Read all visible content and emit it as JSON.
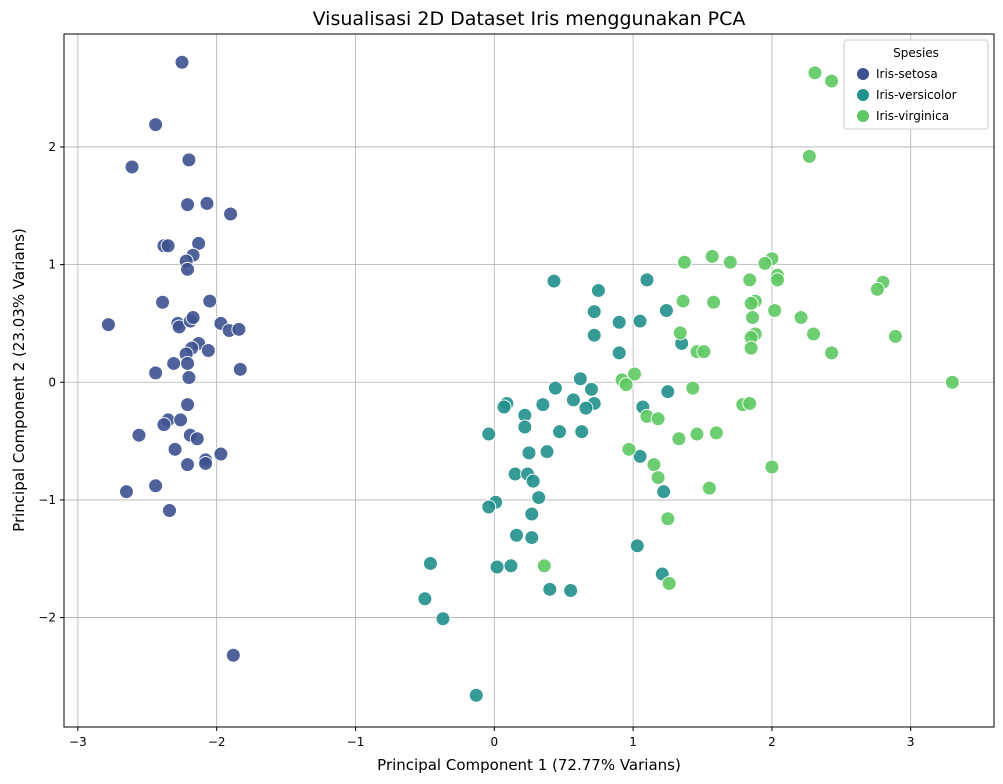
{
  "chart_data": {
    "type": "scatter",
    "title": "Visualisasi 2D Dataset Iris menggunakan PCA",
    "xlabel": "Principal Component 1 (72.77% Varians)",
    "ylabel": "Principal Component 2 (23.03% Varians)",
    "xlim": [
      -3.1,
      3.6
    ],
    "ylim": [
      -2.93,
      2.96
    ],
    "xticks": [
      -3,
      -2,
      -1,
      0,
      1,
      2,
      3
    ],
    "yticks": [
      -2,
      -1,
      0,
      1,
      2
    ],
    "xtick_labels": [
      "−3",
      "−2",
      "−1",
      "0",
      "1",
      "2",
      "3"
    ],
    "ytick_labels": [
      "−2",
      "−1",
      "0",
      "1",
      "2"
    ],
    "grid": true,
    "legend": {
      "title": "Spesies",
      "position": "top-right"
    },
    "series": [
      {
        "name": "Iris-setosa",
        "color": "#3e5290",
        "points": [
          [
            -2.25,
            2.72
          ],
          [
            -2.44,
            2.19
          ],
          [
            -2.61,
            1.83
          ],
          [
            -2.2,
            1.89
          ],
          [
            -2.21,
            1.51
          ],
          [
            -2.07,
            1.52
          ],
          [
            -1.9,
            1.43
          ],
          [
            -2.38,
            1.16
          ],
          [
            -2.35,
            1.16
          ],
          [
            -2.13,
            1.18
          ],
          [
            -2.17,
            1.08
          ],
          [
            -2.22,
            1.03
          ],
          [
            -2.21,
            0.96
          ],
          [
            -2.39,
            0.68
          ],
          [
            -2.05,
            0.69
          ],
          [
            -2.78,
            0.49
          ],
          [
            -2.28,
            0.5
          ],
          [
            -2.27,
            0.47
          ],
          [
            -2.19,
            0.52
          ],
          [
            -2.17,
            0.55
          ],
          [
            -1.97,
            0.5
          ],
          [
            -1.91,
            0.44
          ],
          [
            -1.84,
            0.45
          ],
          [
            -2.13,
            0.33
          ],
          [
            -2.18,
            0.29
          ],
          [
            -2.06,
            0.27
          ],
          [
            -2.22,
            0.24
          ],
          [
            -2.31,
            0.16
          ],
          [
            -2.21,
            0.16
          ],
          [
            -1.83,
            0.11
          ],
          [
            -2.44,
            0.08
          ],
          [
            -2.2,
            0.04
          ],
          [
            -2.21,
            -0.19
          ],
          [
            -2.35,
            -0.32
          ],
          [
            -2.26,
            -0.32
          ],
          [
            -2.38,
            -0.36
          ],
          [
            -2.19,
            -0.45
          ],
          [
            -2.56,
            -0.45
          ],
          [
            -2.14,
            -0.48
          ],
          [
            -2.3,
            -0.57
          ],
          [
            -1.97,
            -0.61
          ],
          [
            -2.08,
            -0.66
          ],
          [
            -2.08,
            -0.69
          ],
          [
            -2.21,
            -0.7
          ],
          [
            -2.44,
            -0.88
          ],
          [
            -2.65,
            -0.93
          ],
          [
            -2.34,
            -1.09
          ],
          [
            -1.88,
            -2.32
          ]
        ]
      },
      {
        "name": "Iris-versicolor",
        "color": "#21918c",
        "points": [
          [
            0.43,
            0.86
          ],
          [
            1.1,
            0.87
          ],
          [
            0.75,
            0.78
          ],
          [
            0.72,
            0.6
          ],
          [
            1.24,
            0.61
          ],
          [
            1.05,
            0.52
          ],
          [
            0.9,
            0.51
          ],
          [
            0.72,
            0.4
          ],
          [
            1.35,
            0.33
          ],
          [
            0.9,
            0.25
          ],
          [
            0.62,
            0.03
          ],
          [
            0.44,
            -0.05
          ],
          [
            0.7,
            -0.06
          ],
          [
            1.25,
            -0.08
          ],
          [
            0.35,
            -0.19
          ],
          [
            0.57,
            -0.15
          ],
          [
            0.72,
            -0.18
          ],
          [
            0.09,
            -0.18
          ],
          [
            0.07,
            -0.21
          ],
          [
            1.07,
            -0.21
          ],
          [
            0.66,
            -0.22
          ],
          [
            0.22,
            -0.28
          ],
          [
            0.22,
            -0.38
          ],
          [
            0.47,
            -0.42
          ],
          [
            0.63,
            -0.42
          ],
          [
            -0.04,
            -0.44
          ],
          [
            0.38,
            -0.59
          ],
          [
            0.25,
            -0.6
          ],
          [
            1.05,
            -0.63
          ],
          [
            0.15,
            -0.78
          ],
          [
            0.24,
            -0.78
          ],
          [
            0.28,
            -0.84
          ],
          [
            1.22,
            -0.93
          ],
          [
            0.32,
            -0.98
          ],
          [
            0.01,
            -1.02
          ],
          [
            -0.04,
            -1.06
          ],
          [
            0.27,
            -1.12
          ],
          [
            0.16,
            -1.3
          ],
          [
            0.27,
            -1.32
          ],
          [
            1.03,
            -1.39
          ],
          [
            -0.46,
            -1.54
          ],
          [
            0.12,
            -1.56
          ],
          [
            0.02,
            -1.57
          ],
          [
            1.21,
            -1.63
          ],
          [
            0.55,
            -1.77
          ],
          [
            0.4,
            -1.76
          ],
          [
            -0.5,
            -1.84
          ],
          [
            -0.37,
            -2.01
          ],
          [
            -0.13,
            -2.66
          ]
        ]
      },
      {
        "name": "Iris-virginica",
        "color": "#5ec962",
        "points": [
          [
            2.31,
            2.63
          ],
          [
            2.43,
            2.56
          ],
          [
            2.27,
            1.92
          ],
          [
            1.57,
            1.07
          ],
          [
            2.0,
            1.05
          ],
          [
            1.37,
            1.02
          ],
          [
            1.7,
            1.02
          ],
          [
            1.95,
            1.01
          ],
          [
            2.04,
            0.91
          ],
          [
            2.04,
            0.87
          ],
          [
            1.84,
            0.87
          ],
          [
            2.8,
            0.85
          ],
          [
            2.76,
            0.79
          ],
          [
            1.36,
            0.69
          ],
          [
            1.58,
            0.68
          ],
          [
            1.88,
            0.69
          ],
          [
            1.85,
            0.67
          ],
          [
            2.02,
            0.61
          ],
          [
            1.86,
            0.55
          ],
          [
            2.21,
            0.55
          ],
          [
            1.34,
            0.42
          ],
          [
            1.88,
            0.41
          ],
          [
            2.3,
            0.41
          ],
          [
            2.89,
            0.39
          ],
          [
            1.85,
            0.38
          ],
          [
            1.85,
            0.29
          ],
          [
            1.46,
            0.26
          ],
          [
            1.51,
            0.26
          ],
          [
            2.43,
            0.25
          ],
          [
            1.01,
            0.07
          ],
          [
            0.92,
            0.02
          ],
          [
            3.3,
            0.0
          ],
          [
            0.95,
            -0.02
          ],
          [
            1.43,
            -0.05
          ],
          [
            1.79,
            -0.19
          ],
          [
            1.84,
            -0.18
          ],
          [
            1.1,
            -0.29
          ],
          [
            1.18,
            -0.31
          ],
          [
            1.6,
            -0.43
          ],
          [
            1.46,
            -0.44
          ],
          [
            1.33,
            -0.48
          ],
          [
            0.97,
            -0.57
          ],
          [
            1.15,
            -0.7
          ],
          [
            2.0,
            -0.72
          ],
          [
            1.18,
            -0.81
          ],
          [
            1.55,
            -0.9
          ],
          [
            1.25,
            -1.16
          ],
          [
            0.36,
            -1.56
          ],
          [
            1.26,
            -1.71
          ]
        ]
      }
    ]
  }
}
